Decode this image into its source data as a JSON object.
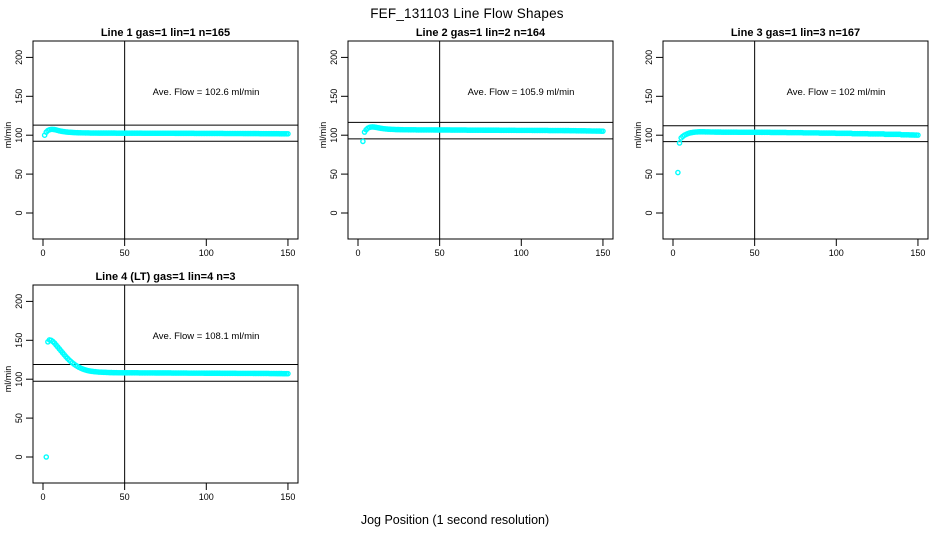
{
  "figure": {
    "title": "FEF_131103  Line Flow Shapes",
    "xlabel": "Jog Position (1 second resolution)",
    "background": "#ffffff",
    "point_color": "#00ffff",
    "axis_color": "#000000"
  },
  "chart_data": [
    {
      "type": "scatter",
      "title": "Line 1 gas=1 lin=1 n=165",
      "ave_flow": 102.6,
      "ave_flow_label": "Ave. Flow =  102.6  ml/min",
      "ylabel": "ml/min",
      "xlim": [
        0,
        150
      ],
      "ylim": [
        0,
        200
      ],
      "xticks": [
        0,
        50,
        100,
        150
      ],
      "yticks": [
        0,
        50,
        100,
        150,
        200
      ],
      "ref_vline_x": 50,
      "ref_hlines": [
        112.9,
        92.3
      ],
      "series": {
        "x_start": 1,
        "x_step": 1,
        "y": [
          100,
          104,
          106,
          107,
          107.5,
          107.5,
          107.2,
          106.8,
          106.2,
          105.6,
          105.2,
          104.8,
          104.5,
          104.2,
          104,
          103.8,
          103.7,
          103.5,
          103.4,
          103.3,
          103.2,
          103.1,
          103.1,
          103,
          103,
          102.9,
          102.9,
          102.9,
          102.8,
          102.8,
          102.8,
          102.8,
          102.8,
          102.7,
          102.7,
          102.7,
          102.7,
          102.7,
          102.7,
          102.7,
          102.7,
          102.7,
          102.7,
          102.7,
          102.6,
          102.6,
          102.6,
          102.6,
          102.6,
          102.6,
          102.6,
          102.6,
          102.6,
          102.6,
          102.6,
          102.6,
          102.6,
          102.6,
          102.6,
          102.6,
          102.5,
          102.5,
          102.5,
          102.5,
          102.5,
          102.5,
          102.5,
          102.5,
          102.5,
          102.5,
          102.5,
          102.5,
          102.5,
          102.5,
          102.5,
          102.5,
          102.5,
          102.5,
          102.5,
          102.5,
          102.4,
          102.4,
          102.4,
          102.4,
          102.4,
          102.4,
          102.4,
          102.4,
          102.4,
          102.4,
          102.4,
          102.4,
          102.3,
          102.3,
          102.3,
          102.3,
          102.3,
          102.3,
          102.3,
          102.3,
          102.3,
          102.3,
          102.3,
          102.3,
          102.3,
          102.3,
          102.3,
          102.3,
          102.3,
          102.3,
          102.2,
          102.2,
          102.2,
          102.2,
          102.2,
          102.2,
          102.2,
          102.2,
          102.2,
          102.2,
          102.2,
          102.2,
          102.1,
          102.1,
          102.1,
          102.1,
          102.1,
          102.1,
          102.1,
          102.1,
          102.1,
          102.1,
          102,
          102,
          102,
          102,
          102,
          102,
          101.9,
          101.9,
          101.9,
          101.9,
          101.9,
          101.9,
          101.8,
          101.8,
          101.8,
          101.8,
          101.8,
          101.8
        ]
      },
      "outlier_points": []
    },
    {
      "type": "scatter",
      "title": "Line 2 gas=1 lin=2 n=164",
      "ave_flow": 105.9,
      "ave_flow_label": "Ave. Flow =  105.9  ml/min",
      "ylabel": "ml/min",
      "xlim": [
        0,
        150
      ],
      "ylim": [
        0,
        200
      ],
      "xticks": [
        0,
        50,
        100,
        150
      ],
      "yticks": [
        0,
        50,
        100,
        150,
        200
      ],
      "ref_vline_x": 50,
      "ref_hlines": [
        116.5,
        95.3
      ],
      "series": {
        "x_start": 4,
        "x_step": 1,
        "y": [
          104,
          107,
          109,
          110,
          110.5,
          110.6,
          110.4,
          110.1,
          109.7,
          109.3,
          108.9,
          108.6,
          108.3,
          108.1,
          107.9,
          107.7,
          107.6,
          107.5,
          107.4,
          107.3,
          107.2,
          107.2,
          107.1,
          107.1,
          107,
          107,
          107,
          106.9,
          106.9,
          106.9,
          106.9,
          106.9,
          106.8,
          106.8,
          106.8,
          106.8,
          106.8,
          106.8,
          106.8,
          106.8,
          106.8,
          106.8,
          106.8,
          106.7,
          106.7,
          106.7,
          106.7,
          106.7,
          106.7,
          106.7,
          106.7,
          106.7,
          106.7,
          106.6,
          106.6,
          106.6,
          106.6,
          106.6,
          106.6,
          106.6,
          106.6,
          106.6,
          106.6,
          106.5,
          106.5,
          106.5,
          106.5,
          106.5,
          106.5,
          106.5,
          106.5,
          106.5,
          106.5,
          106.4,
          106.4,
          106.4,
          106.4,
          106.4,
          106.4,
          106.4,
          106.4,
          106.4,
          106.4,
          106.3,
          106.3,
          106.3,
          106.3,
          106.3,
          106.3,
          106.3,
          106.3,
          106.3,
          106.3,
          106.2,
          106.2,
          106.2,
          106.2,
          106.2,
          106.2,
          106.2,
          106.2,
          106.2,
          106.2,
          106.1,
          106.1,
          106.1,
          106.1,
          106.1,
          106.1,
          106.1,
          106.1,
          106.1,
          106.1,
          106,
          106,
          106,
          106,
          106,
          106,
          106,
          106,
          106,
          105.9,
          105.9,
          105.9,
          105.9,
          105.8,
          105.8,
          105.8,
          105.8,
          105.7,
          105.7,
          105.7,
          105.6,
          105.6,
          105.6,
          105.5,
          105.5,
          105.5,
          105.4,
          105.4,
          105.4,
          105.3,
          105.3,
          105.3,
          105.2,
          105.2
        ]
      },
      "outlier_points": [
        [
          3,
          92
        ]
      ]
    },
    {
      "type": "scatter",
      "title": "Line 3 gas=1 lin=3 n=167",
      "ave_flow": 102,
      "ave_flow_label": "Ave. Flow =  102  ml/min",
      "ylabel": "ml/min",
      "xlim": [
        0,
        150
      ],
      "ylim": [
        0,
        200
      ],
      "xticks": [
        0,
        50,
        100,
        150
      ],
      "yticks": [
        0,
        50,
        100,
        150,
        200
      ],
      "ref_vline_x": 50,
      "ref_hlines": [
        112.2,
        91.8
      ],
      "series": {
        "x_start": 5,
        "x_step": 1,
        "y": [
          96.5,
          98.5,
          100,
          101,
          102,
          102.7,
          103.2,
          103.6,
          103.9,
          104.1,
          104.2,
          104.3,
          104.3,
          104.3,
          104.3,
          104.2,
          104.2,
          104.2,
          104.1,
          104.1,
          104.1,
          104,
          104,
          104,
          104,
          103.9,
          103.9,
          103.9,
          103.9,
          103.9,
          103.9,
          103.9,
          103.9,
          103.9,
          103.9,
          103.8,
          103.8,
          103.8,
          103.8,
          103.8,
          103.8,
          103.8,
          103.8,
          103.8,
          103.8,
          103.7,
          103.7,
          103.7,
          103.7,
          103.7,
          103.7,
          103.7,
          103.7,
          103.7,
          103.7,
          103.5,
          103.5,
          103.5,
          103.5,
          103.5,
          103.5,
          103.5,
          103.5,
          103.5,
          103.5,
          103.3,
          103.3,
          103.3,
          103.3,
          103.3,
          103.3,
          103.3,
          103.3,
          103.3,
          103.3,
          103,
          103,
          103,
          103,
          103,
          103,
          103,
          103,
          103,
          103,
          102.7,
          102.7,
          102.7,
          102.7,
          102.7,
          102.7,
          102.7,
          102.7,
          102.7,
          102.7,
          102.4,
          102.4,
          102.4,
          102.4,
          102.4,
          102.4,
          102.4,
          102.4,
          102.4,
          102.4,
          102,
          102,
          102,
          102,
          102,
          102,
          102,
          102,
          102,
          102,
          101.6,
          101.6,
          101.6,
          101.6,
          101.6,
          101.6,
          101.6,
          101.6,
          101.6,
          101.6,
          101.1,
          101.1,
          101.1,
          101.1,
          101.1,
          101.1,
          101.1,
          101.1,
          101.1,
          101.1,
          100.5,
          100.5,
          100.5,
          100.5,
          100.5,
          100.4,
          100.3,
          100.3,
          100.2,
          100.2,
          100.1
        ]
      },
      "outlier_points": [
        [
          3,
          52
        ],
        [
          4,
          90
        ]
      ]
    },
    {
      "type": "scatter",
      "title": "Line 4 (LT) gas=1 lin=4 n=3",
      "ave_flow": 108.1,
      "ave_flow_label": "Ave. Flow =  108.1  ml/min",
      "ylabel": "ml/min",
      "xlim": [
        0,
        150
      ],
      "ylim": [
        0,
        200
      ],
      "xticks": [
        0,
        50,
        100,
        150
      ],
      "yticks": [
        0,
        50,
        100,
        150,
        200
      ],
      "ref_vline_x": 50,
      "ref_hlines": [
        118.9,
        97.3
      ],
      "series": {
        "x_start": 3,
        "x_step": 1,
        "y": [
          148,
          150.5,
          150,
          148.5,
          146.5,
          144,
          141.5,
          139,
          136.5,
          134,
          131.5,
          129,
          126.8,
          124.7,
          122.8,
          121,
          119.4,
          117.9,
          116.6,
          115.4,
          114.3,
          113.4,
          112.6,
          111.9,
          111.3,
          110.8,
          110.4,
          110.1,
          109.8,
          109.6,
          109.4,
          109.2,
          109.1,
          109,
          108.9,
          108.8,
          108.7,
          108.6,
          108.5,
          108.5,
          108.4,
          108.4,
          108.4,
          108.3,
          108.3,
          108.3,
          108.2,
          108.2,
          108.2,
          108.2,
          108.2,
          108.2,
          108.2,
          108.2,
          108.2,
          108.2,
          108.1,
          108.1,
          108.1,
          108.1,
          108.1,
          108.1,
          108.1,
          108.1,
          108.1,
          108.1,
          108,
          108,
          108,
          108,
          108,
          108,
          108,
          108,
          108,
          108,
          107.9,
          107.9,
          107.9,
          107.9,
          107.9,
          107.9,
          107.9,
          107.9,
          107.9,
          107.9,
          107.8,
          107.8,
          107.8,
          107.8,
          107.8,
          107.8,
          107.8,
          107.8,
          107.8,
          107.8,
          107.7,
          107.7,
          107.7,
          107.7,
          107.7,
          107.7,
          107.7,
          107.7,
          107.7,
          107.7,
          107.6,
          107.6,
          107.6,
          107.6,
          107.6,
          107.6,
          107.6,
          107.6,
          107.6,
          107.6,
          107.5,
          107.5,
          107.5,
          107.5,
          107.5,
          107.5,
          107.5,
          107.5,
          107.5,
          107.5,
          107.4,
          107.4,
          107.4,
          107.4,
          107.4,
          107.4,
          107.4,
          107.4,
          107.4,
          107.4,
          107.3,
          107.3,
          107.3,
          107.3,
          107.2,
          107.2,
          107.2,
          107.2,
          107.1,
          107.1,
          107.1,
          107.1
        ]
      },
      "outlier_points": [
        [
          2,
          0
        ]
      ]
    }
  ]
}
